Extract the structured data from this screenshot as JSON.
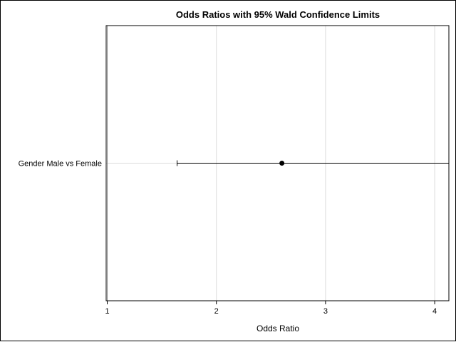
{
  "chart_data": {
    "type": "scatter",
    "title": "Odds Ratios with 95% Wald Confidence Limits",
    "xlabel": "Odds Ratio",
    "ylabel": "",
    "xlim": [
      0.99,
      4.13
    ],
    "x_ticks": [
      1,
      2,
      3,
      4
    ],
    "x_tick_labels": [
      "1",
      "2",
      "3",
      "4"
    ],
    "reference_line_x": 1,
    "grid": true,
    "categories": [
      "Gender Male vs Female"
    ],
    "series": [
      {
        "points": [
          {
            "category": "Gender Male vs Female",
            "estimate": 2.6,
            "lower": 1.64,
            "upper": 4.13
          }
        ]
      }
    ]
  },
  "colors": {
    "frame": "#000000",
    "plot_border": "#000000",
    "gridline": "#dcdcdc",
    "reference_line": "#8a8a8a",
    "marker": "#000000",
    "text": "#000000"
  }
}
